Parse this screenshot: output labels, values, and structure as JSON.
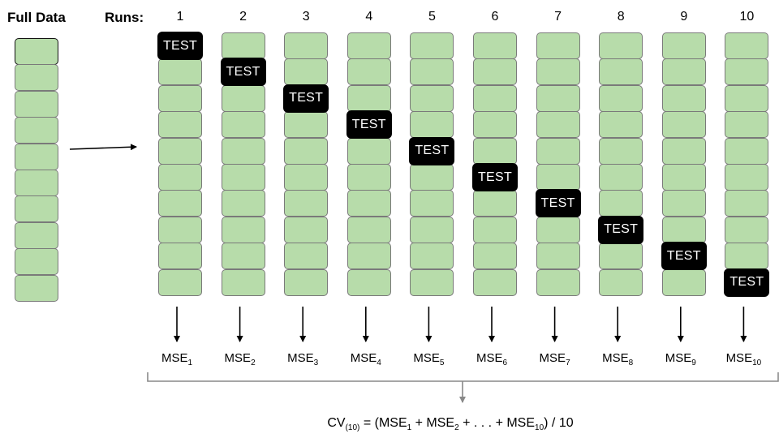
{
  "headings": {
    "full_data": "Full Data",
    "runs": "Runs:"
  },
  "colors": {
    "fold_fill": "#b7dcaa",
    "fold_border": "#7a7a7a",
    "test_fill": "#000000",
    "test_text": "#ffffff",
    "bracket": "#888888"
  },
  "fold_count": 10,
  "test_label": "TEST",
  "runs": [
    {
      "label": "1",
      "test_fold": 1,
      "mse": "MSE",
      "mse_sub": "1"
    },
    {
      "label": "2",
      "test_fold": 2,
      "mse": "MSE",
      "mse_sub": "2"
    },
    {
      "label": "3",
      "test_fold": 3,
      "mse": "MSE",
      "mse_sub": "3"
    },
    {
      "label": "4",
      "test_fold": 4,
      "mse": "MSE",
      "mse_sub": "4"
    },
    {
      "label": "5",
      "test_fold": 5,
      "mse": "MSE",
      "mse_sub": "5"
    },
    {
      "label": "6",
      "test_fold": 6,
      "mse": "MSE",
      "mse_sub": "6"
    },
    {
      "label": "7",
      "test_fold": 7,
      "mse": "MSE",
      "mse_sub": "7"
    },
    {
      "label": "8",
      "test_fold": 8,
      "mse": "MSE",
      "mse_sub": "8"
    },
    {
      "label": "9",
      "test_fold": 9,
      "mse": "MSE",
      "mse_sub": "9"
    },
    {
      "label": "10",
      "test_fold": 10,
      "mse": "MSE",
      "mse_sub": "10"
    }
  ],
  "formula": {
    "cv": "CV",
    "cv_sub": "(10)",
    "part1": " = (MSE",
    "sub1": "1",
    "part2": " + MSE",
    "sub2": "2",
    "part3": " + . . . + MSE",
    "sub3": "10",
    "part4": ") / 10"
  }
}
